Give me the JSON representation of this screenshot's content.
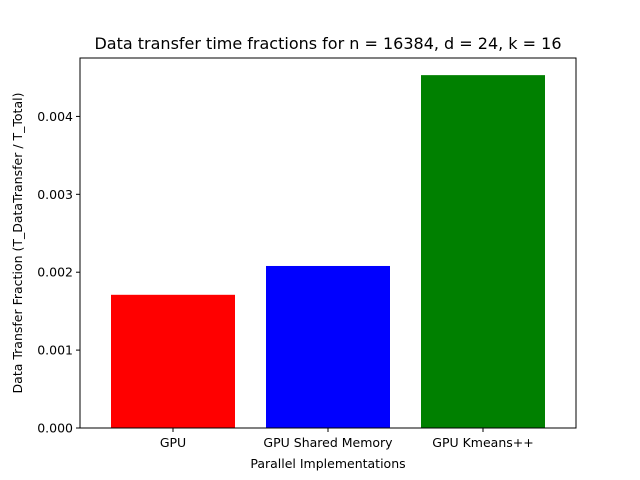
{
  "chart_data": {
    "type": "bar",
    "title": "Data transfer time fractions for n = 16384, d = 24, k = 16",
    "xlabel": "Parallel Implementations",
    "ylabel": "Data Transfer Fraction (T_DataTransfer / T_Total)",
    "categories": [
      "GPU",
      "GPU Shared Memory",
      "GPU Kmeans++"
    ],
    "values": [
      0.00171,
      0.00208,
      0.00453
    ],
    "colors": [
      "#ff0000",
      "#0000ff",
      "#008000"
    ],
    "ylim": [
      0,
      0.00475
    ],
    "yticks": [
      0,
      0.001,
      0.002,
      0.003,
      0.004
    ],
    "ytick_labels": [
      "0.000",
      "0.001",
      "0.002",
      "0.003",
      "0.004"
    ],
    "grid": false,
    "legend": "none"
  }
}
